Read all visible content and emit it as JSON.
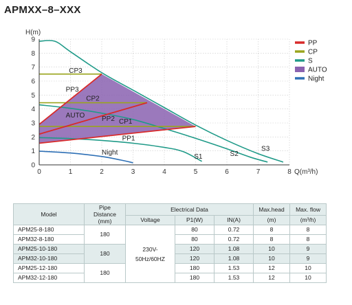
{
  "title": "APMXX–8–XXX",
  "chart_data": {
    "type": "line",
    "ylabel": "H(m)",
    "xlabel": "Q(m³/h)",
    "x_ticks": [
      "0",
      "1",
      "2",
      "3",
      "4",
      "5",
      "6",
      "7",
      "8"
    ],
    "y_ticks": [
      "0",
      "1",
      "2",
      "3",
      "4",
      "5",
      "6",
      "7",
      "8",
      "9"
    ],
    "xlim": [
      0,
      8
    ],
    "ylim": [
      0,
      9
    ],
    "grid": true,
    "legend_position": "right",
    "legend": [
      {
        "label": "PP",
        "color": "#d82a2a"
      },
      {
        "label": "CP",
        "color": "#9aa51d"
      },
      {
        "label": "S",
        "color": "#1f9a88"
      },
      {
        "label": "AUTO",
        "color": "#8a62b0"
      },
      {
        "label": "Night",
        "color": "#2d6fb5"
      }
    ],
    "auto_area": [
      [
        0,
        2.9
      ],
      [
        2.0,
        6.5
      ],
      [
        5.0,
        2.75
      ],
      [
        0,
        1.55
      ]
    ],
    "series": [
      {
        "name": "S3",
        "color": "#1f9a88",
        "points": [
          [
            0,
            8.85
          ],
          [
            0.5,
            8.85
          ],
          [
            1,
            8.1
          ],
          [
            2,
            6.6
          ],
          [
            3,
            5.35
          ],
          [
            4,
            4.1
          ],
          [
            5,
            2.85
          ],
          [
            6,
            1.75
          ],
          [
            7,
            0.8
          ],
          [
            7.8,
            0.2
          ]
        ],
        "label_pos": [
          7.1,
          1.0
        ]
      },
      {
        "name": "S2",
        "color": "#1f9a88",
        "points": [
          [
            0,
            4.3
          ],
          [
            1,
            4.05
          ],
          [
            2,
            3.7
          ],
          [
            3,
            3.25
          ],
          [
            4,
            2.6
          ],
          [
            5,
            1.9
          ],
          [
            6,
            1.15
          ],
          [
            6.75,
            0.55
          ],
          [
            7.3,
            0.2
          ]
        ],
        "label_pos": [
          6.1,
          0.65
        ]
      },
      {
        "name": "S1",
        "color": "#1f9a88",
        "points": [
          [
            0,
            1.95
          ],
          [
            1,
            1.88
          ],
          [
            2,
            1.75
          ],
          [
            3,
            1.55
          ],
          [
            4,
            1.25
          ],
          [
            4.6,
            0.95
          ],
          [
            5.2,
            0.25
          ]
        ],
        "label_pos": [
          4.95,
          0.45
        ]
      },
      {
        "name": "Night",
        "color": "#2d6fb5",
        "points": [
          [
            0,
            0.98
          ],
          [
            1,
            0.85
          ],
          [
            2,
            0.6
          ],
          [
            2.6,
            0.35
          ],
          [
            3.0,
            0.15
          ]
        ],
        "label_pos": [
          2.0,
          0.75
        ]
      },
      {
        "name": "CP3",
        "color": "#9aa51d",
        "points": [
          [
            0,
            6.5
          ],
          [
            2.0,
            6.5
          ]
        ],
        "label_pos": [
          0.95,
          6.6
        ]
      },
      {
        "name": "CP2",
        "color": "#9aa51d",
        "points": [
          [
            0,
            4.45
          ],
          [
            3.45,
            4.45
          ]
        ],
        "label_pos": [
          1.5,
          4.6
        ]
      },
      {
        "name": "CP1",
        "color": "#9aa51d",
        "points": [
          [
            0,
            2.75
          ],
          [
            5.0,
            2.75
          ]
        ],
        "label_pos": [
          2.55,
          2.95
        ]
      },
      {
        "name": "PP3",
        "color": "#d82a2a",
        "points": [
          [
            0,
            2.9
          ],
          [
            2.0,
            6.5
          ]
        ],
        "label_pos": [
          0.85,
          5.25
        ]
      },
      {
        "name": "PP2",
        "color": "#d82a2a",
        "points": [
          [
            0,
            2.2
          ],
          [
            3.45,
            4.45
          ]
        ],
        "label_pos": [
          2.0,
          3.15
        ]
      },
      {
        "name": "PP1",
        "color": "#d82a2a",
        "points": [
          [
            0,
            1.55
          ],
          [
            5.0,
            2.75
          ]
        ],
        "label_pos": [
          2.65,
          1.75
        ]
      }
    ],
    "annotations": [
      {
        "text": "AUTO",
        "pos": [
          0.85,
          3.4
        ]
      }
    ]
  },
  "table": {
    "headers": {
      "model": "Model",
      "pipe_distance": "Pipe\nDistance\n(mm)",
      "electrical": "Electrical Data",
      "voltage": "Voltage",
      "p1": "P1(W)",
      "in": "IN(A)",
      "max_head": "Max.head",
      "max_head_unit": "(m)",
      "max_flow": "Max. flow",
      "max_flow_unit": "(m³/h)"
    },
    "voltage_value": "230V-\n50Hz/60HZ",
    "pipe_groups": [
      "180",
      "180",
      "180"
    ],
    "rows": [
      {
        "model": "APM25-8-180",
        "p1": "80",
        "in": "0.72",
        "head": "8",
        "flow": "8"
      },
      {
        "model": "APM32-8-180",
        "p1": "80",
        "in": "0.72",
        "head": "8",
        "flow": "8"
      },
      {
        "model": "APM25-10-180",
        "p1": "120",
        "in": "1.08",
        "head": "10",
        "flow": "9"
      },
      {
        "model": "APM32-10-180",
        "p1": "120",
        "in": "1.08",
        "head": "10",
        "flow": "9"
      },
      {
        "model": "APM25-12-180",
        "p1": "180",
        "in": "1.53",
        "head": "12",
        "flow": "10"
      },
      {
        "model": "APM32-12-180",
        "p1": "180",
        "in": "1.53",
        "head": "12",
        "flow": "10"
      }
    ]
  }
}
